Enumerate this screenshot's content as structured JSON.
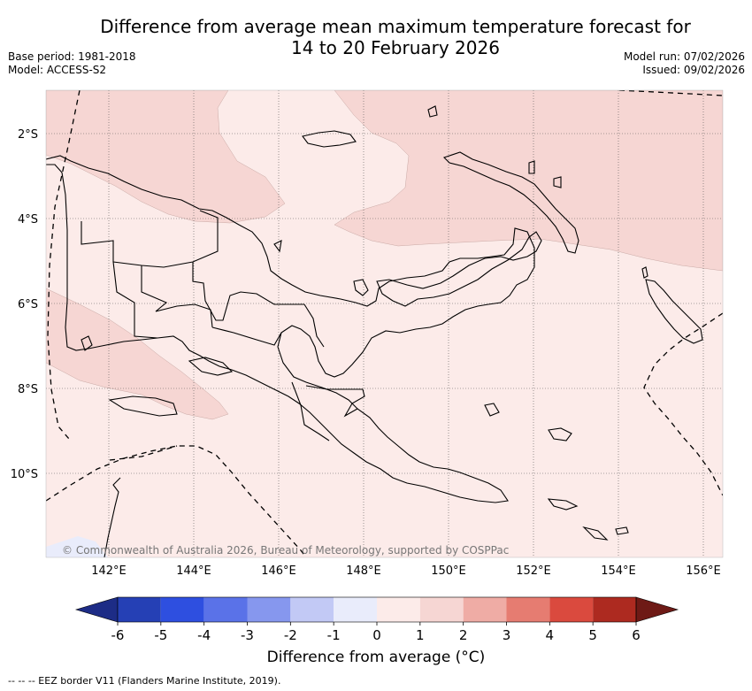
{
  "title": {
    "line1": "Difference from average mean maximum temperature forecast for",
    "line2": "14 to 20 February 2026"
  },
  "meta": {
    "base_period": "Base period: 1981-2018",
    "model": "Model: ACCESS-S2",
    "model_run": "Model run: 07/02/2026",
    "issued": "Issued: 09/02/2026"
  },
  "map": {
    "lat_labels": [
      "2°S",
      "4°S",
      "6°S",
      "8°S",
      "10°S"
    ],
    "lon_labels": [
      "142°E",
      "144°E",
      "146°E",
      "148°E",
      "150°E",
      "152°E",
      "154°E",
      "156°E"
    ],
    "copyright": "© Commonwealth of Australia 2026, Bureau of Meteorology, supported by COSPPac",
    "colors": {
      "ocean_base": "#fcebe9",
      "warmer_band": "#f6d6d3",
      "cool_patch": "#e9ecfb",
      "coastline": "#000000",
      "grid": "#555555"
    }
  },
  "colorbar": {
    "ticks": [
      "-6",
      "-5",
      "-4",
      "-3",
      "-2",
      "-1",
      "0",
      "1",
      "2",
      "3",
      "4",
      "5",
      "6"
    ],
    "colors": [
      "#2540b5",
      "#2e4fe0",
      "#5a72e8",
      "#8697ee",
      "#c2c9f5",
      "#e9ecfb",
      "#fcebe9",
      "#f6d6d3",
      "#efaca5",
      "#e67c71",
      "#da4a3e",
      "#ad2a20"
    ],
    "low_extend": "#1d2c86",
    "high_extend": "#6e1a16",
    "label": "Difference from average (°C)"
  },
  "footer": "--  --  -- EEZ border V11 (Flanders Marine Institute, 2019)."
}
